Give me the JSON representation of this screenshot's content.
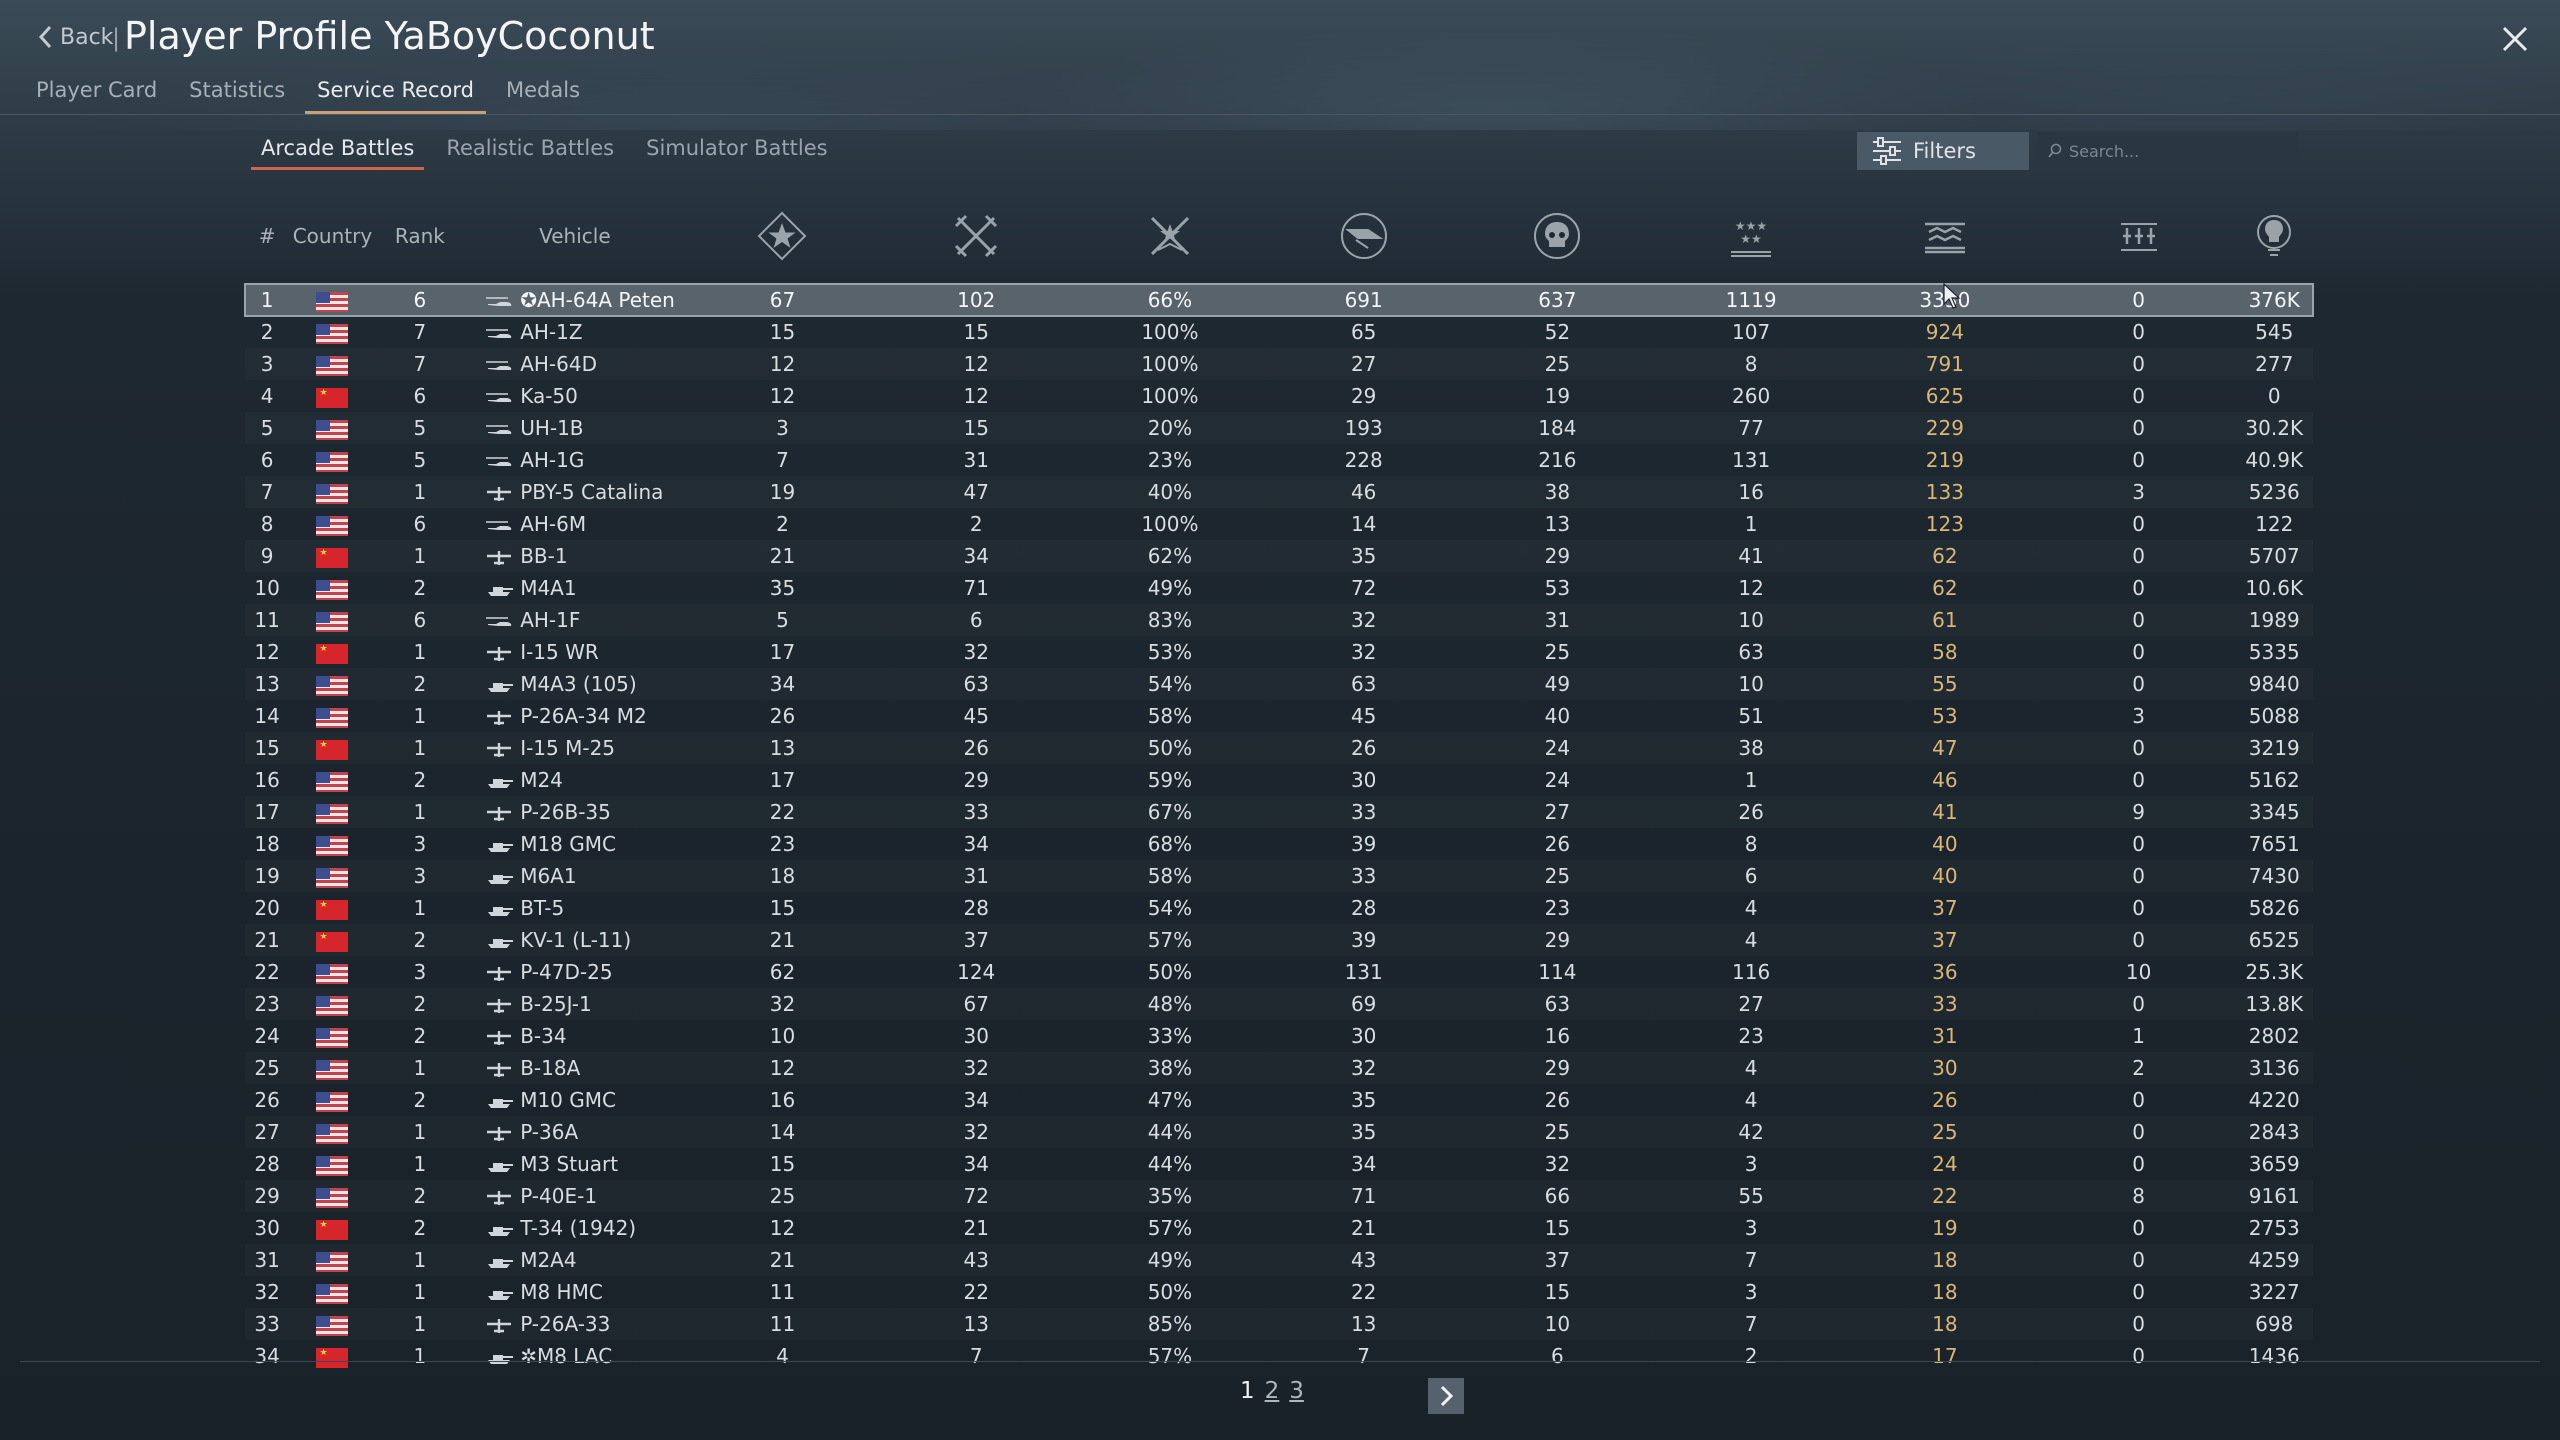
{
  "header": {
    "back_label": "Back",
    "separator": "|",
    "title": "Player Profile YaBoyCoconut",
    "tabs": [
      "Player Card",
      "Statistics",
      "Service Record",
      "Medals"
    ],
    "active_tab": "Service Record"
  },
  "subtabs": [
    "Arcade Battles",
    "Realistic Battles",
    "Simulator Battles"
  ],
  "active_subtab": "Arcade Battles",
  "filters_label": "Filters",
  "search": {
    "placeholder": "Search...",
    "value": ""
  },
  "table": {
    "columns": {
      "num": "#",
      "country": "Country",
      "rank": "Rank",
      "vehicle": "Vehicle",
      "icons": [
        "victories-icon",
        "battles-icon",
        "win-rate-icon",
        "respawns-icon",
        "deaths-icon",
        "ground-kills-icon",
        "air-kills-icon",
        "naval-kills-icon",
        "activity-icon"
      ]
    },
    "rows": [
      {
        "n": "1",
        "c": "us",
        "r": "6",
        "t": "heli",
        "v": "✪AH-64A Peten",
        "a": "67",
        "b": "102",
        "w": "66%",
        "d": "691",
        "e": "637",
        "f": "1119",
        "g": "3330",
        "h": "0",
        "i": "376K"
      },
      {
        "n": "2",
        "c": "us",
        "r": "7",
        "t": "heli",
        "v": "AH-1Z",
        "a": "15",
        "b": "15",
        "w": "100%",
        "d": "65",
        "e": "52",
        "f": "107",
        "g": "924",
        "h": "0",
        "i": "545"
      },
      {
        "n": "3",
        "c": "us",
        "r": "7",
        "t": "heli",
        "v": "AH-64D",
        "a": "12",
        "b": "12",
        "w": "100%",
        "d": "27",
        "e": "25",
        "f": "8",
        "g": "791",
        "h": "0",
        "i": "277"
      },
      {
        "n": "4",
        "c": "cn",
        "r": "6",
        "t": "heli",
        "v": "Ka-50",
        "a": "12",
        "b": "12",
        "w": "100%",
        "d": "29",
        "e": "19",
        "f": "260",
        "g": "625",
        "h": "0",
        "i": "0"
      },
      {
        "n": "5",
        "c": "us",
        "r": "5",
        "t": "heli",
        "v": "UH-1B",
        "a": "3",
        "b": "15",
        "w": "20%",
        "d": "193",
        "e": "184",
        "f": "77",
        "g": "229",
        "h": "0",
        "i": "30.2K"
      },
      {
        "n": "6",
        "c": "us",
        "r": "5",
        "t": "heli",
        "v": "AH-1G",
        "a": "7",
        "b": "31",
        "w": "23%",
        "d": "228",
        "e": "216",
        "f": "131",
        "g": "219",
        "h": "0",
        "i": "40.9K"
      },
      {
        "n": "7",
        "c": "us",
        "r": "1",
        "t": "plane",
        "v": "PBY-5 Catalina",
        "a": "19",
        "b": "47",
        "w": "40%",
        "d": "46",
        "e": "38",
        "f": "16",
        "g": "133",
        "h": "3",
        "i": "5236"
      },
      {
        "n": "8",
        "c": "us",
        "r": "6",
        "t": "heli",
        "v": "AH-6M",
        "a": "2",
        "b": "2",
        "w": "100%",
        "d": "14",
        "e": "13",
        "f": "1",
        "g": "123",
        "h": "0",
        "i": "122"
      },
      {
        "n": "9",
        "c": "cn",
        "r": "1",
        "t": "plane",
        "v": "BB-1",
        "a": "21",
        "b": "34",
        "w": "62%",
        "d": "35",
        "e": "29",
        "f": "41",
        "g": "62",
        "h": "0",
        "i": "5707"
      },
      {
        "n": "10",
        "c": "us",
        "r": "2",
        "t": "tank",
        "v": "M4A1",
        "a": "35",
        "b": "71",
        "w": "49%",
        "d": "72",
        "e": "53",
        "f": "12",
        "g": "62",
        "h": "0",
        "i": "10.6K"
      },
      {
        "n": "11",
        "c": "us",
        "r": "6",
        "t": "heli",
        "v": "AH-1F",
        "a": "5",
        "b": "6",
        "w": "83%",
        "d": "32",
        "e": "31",
        "f": "10",
        "g": "61",
        "h": "0",
        "i": "1989"
      },
      {
        "n": "12",
        "c": "cn",
        "r": "1",
        "t": "plane",
        "v": "I-15 WR",
        "a": "17",
        "b": "32",
        "w": "53%",
        "d": "32",
        "e": "25",
        "f": "63",
        "g": "58",
        "h": "0",
        "i": "5335"
      },
      {
        "n": "13",
        "c": "us",
        "r": "2",
        "t": "tank",
        "v": "M4A3 (105)",
        "a": "34",
        "b": "63",
        "w": "54%",
        "d": "63",
        "e": "49",
        "f": "10",
        "g": "55",
        "h": "0",
        "i": "9840"
      },
      {
        "n": "14",
        "c": "us",
        "r": "1",
        "t": "plane",
        "v": "P-26A-34 M2",
        "a": "26",
        "b": "45",
        "w": "58%",
        "d": "45",
        "e": "40",
        "f": "51",
        "g": "53",
        "h": "3",
        "i": "5088"
      },
      {
        "n": "15",
        "c": "cn",
        "r": "1",
        "t": "plane",
        "v": "I-15 M-25",
        "a": "13",
        "b": "26",
        "w": "50%",
        "d": "26",
        "e": "24",
        "f": "38",
        "g": "47",
        "h": "0",
        "i": "3219"
      },
      {
        "n": "16",
        "c": "us",
        "r": "2",
        "t": "tank",
        "v": "M24",
        "a": "17",
        "b": "29",
        "w": "59%",
        "d": "30",
        "e": "24",
        "f": "1",
        "g": "46",
        "h": "0",
        "i": "5162"
      },
      {
        "n": "17",
        "c": "us",
        "r": "1",
        "t": "plane",
        "v": "P-26B-35",
        "a": "22",
        "b": "33",
        "w": "67%",
        "d": "33",
        "e": "27",
        "f": "26",
        "g": "41",
        "h": "9",
        "i": "3345"
      },
      {
        "n": "18",
        "c": "us",
        "r": "3",
        "t": "tank",
        "v": "M18 GMC",
        "a": "23",
        "b": "34",
        "w": "68%",
        "d": "39",
        "e": "26",
        "f": "8",
        "g": "40",
        "h": "0",
        "i": "7651"
      },
      {
        "n": "19",
        "c": "us",
        "r": "3",
        "t": "tank",
        "v": "M6A1",
        "a": "18",
        "b": "31",
        "w": "58%",
        "d": "33",
        "e": "25",
        "f": "6",
        "g": "40",
        "h": "0",
        "i": "7430"
      },
      {
        "n": "20",
        "c": "cn",
        "r": "1",
        "t": "tank",
        "v": "BT-5",
        "a": "15",
        "b": "28",
        "w": "54%",
        "d": "28",
        "e": "23",
        "f": "4",
        "g": "37",
        "h": "0",
        "i": "5826"
      },
      {
        "n": "21",
        "c": "cn",
        "r": "2",
        "t": "tank",
        "v": "KV-1 (L-11)",
        "a": "21",
        "b": "37",
        "w": "57%",
        "d": "39",
        "e": "29",
        "f": "4",
        "g": "37",
        "h": "0",
        "i": "6525"
      },
      {
        "n": "22",
        "c": "us",
        "r": "3",
        "t": "plane",
        "v": "P-47D-25",
        "a": "62",
        "b": "124",
        "w": "50%",
        "d": "131",
        "e": "114",
        "f": "116",
        "g": "36",
        "h": "10",
        "i": "25.3K"
      },
      {
        "n": "23",
        "c": "us",
        "r": "2",
        "t": "plane",
        "v": "B-25J-1",
        "a": "32",
        "b": "67",
        "w": "48%",
        "d": "69",
        "e": "63",
        "f": "27",
        "g": "33",
        "h": "0",
        "i": "13.8K"
      },
      {
        "n": "24",
        "c": "us",
        "r": "2",
        "t": "plane",
        "v": "B-34",
        "a": "10",
        "b": "30",
        "w": "33%",
        "d": "30",
        "e": "16",
        "f": "23",
        "g": "31",
        "h": "1",
        "i": "2802"
      },
      {
        "n": "25",
        "c": "us",
        "r": "1",
        "t": "plane",
        "v": "B-18A",
        "a": "12",
        "b": "32",
        "w": "38%",
        "d": "32",
        "e": "29",
        "f": "4",
        "g": "30",
        "h": "2",
        "i": "3136"
      },
      {
        "n": "26",
        "c": "us",
        "r": "2",
        "t": "tank",
        "v": "M10 GMC",
        "a": "16",
        "b": "34",
        "w": "47%",
        "d": "35",
        "e": "26",
        "f": "4",
        "g": "26",
        "h": "0",
        "i": "4220"
      },
      {
        "n": "27",
        "c": "us",
        "r": "1",
        "t": "plane",
        "v": "P-36A",
        "a": "14",
        "b": "32",
        "w": "44%",
        "d": "35",
        "e": "25",
        "f": "42",
        "g": "25",
        "h": "0",
        "i": "2843"
      },
      {
        "n": "28",
        "c": "us",
        "r": "1",
        "t": "tank",
        "v": "M3 Stuart",
        "a": "15",
        "b": "34",
        "w": "44%",
        "d": "34",
        "e": "32",
        "f": "3",
        "g": "24",
        "h": "0",
        "i": "3659"
      },
      {
        "n": "29",
        "c": "us",
        "r": "2",
        "t": "plane",
        "v": "P-40E-1",
        "a": "25",
        "b": "72",
        "w": "35%",
        "d": "71",
        "e": "66",
        "f": "55",
        "g": "22",
        "h": "8",
        "i": "9161"
      },
      {
        "n": "30",
        "c": "cn",
        "r": "2",
        "t": "tank",
        "v": "T-34 (1942)",
        "a": "12",
        "b": "21",
        "w": "57%",
        "d": "21",
        "e": "15",
        "f": "3",
        "g": "19",
        "h": "0",
        "i": "2753"
      },
      {
        "n": "31",
        "c": "us",
        "r": "1",
        "t": "tank",
        "v": "M2A4",
        "a": "21",
        "b": "43",
        "w": "49%",
        "d": "43",
        "e": "37",
        "f": "7",
        "g": "18",
        "h": "0",
        "i": "4259"
      },
      {
        "n": "32",
        "c": "us",
        "r": "1",
        "t": "tank",
        "v": "M8 HMC",
        "a": "11",
        "b": "22",
        "w": "50%",
        "d": "22",
        "e": "15",
        "f": "3",
        "g": "18",
        "h": "0",
        "i": "3227"
      },
      {
        "n": "33",
        "c": "us",
        "r": "1",
        "t": "plane",
        "v": "P-26A-33",
        "a": "11",
        "b": "13",
        "w": "85%",
        "d": "13",
        "e": "10",
        "f": "7",
        "g": "18",
        "h": "0",
        "i": "698"
      },
      {
        "n": "34",
        "c": "cn",
        "r": "1",
        "t": "tank",
        "v": "✲M8 LAC",
        "a": "4",
        "b": "7",
        "w": "57%",
        "d": "7",
        "e": "6",
        "f": "2",
        "g": "17",
        "h": "0",
        "i": "1436"
      }
    ]
  },
  "pagination": {
    "pages": [
      "1",
      "2",
      "3"
    ],
    "current": "1"
  },
  "colors": {
    "accent_tab": "#c8a07a",
    "accent_subtab": "#d0654a",
    "gold": "#d8b778"
  }
}
